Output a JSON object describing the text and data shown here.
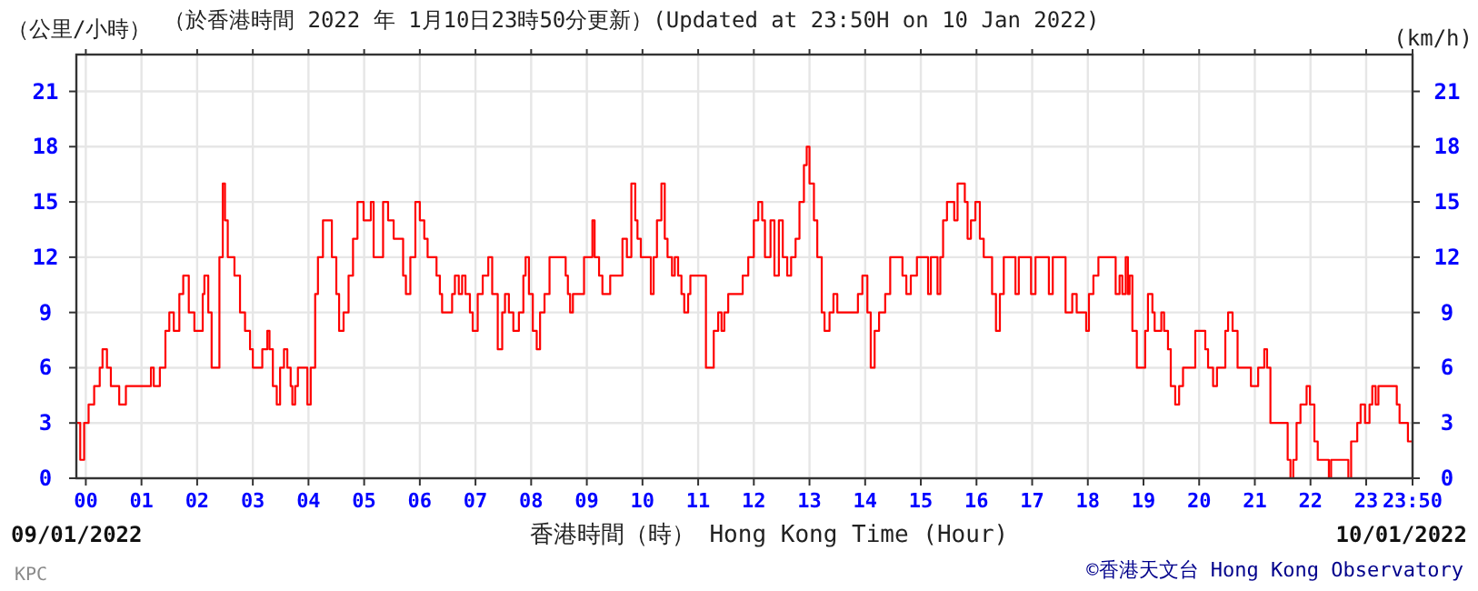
{
  "chart_data": {
    "type": "step",
    "title": "（於香港時間 2022 年 1月10日23時50分更新）(Updated at 23:50H on 10 Jan 2022)",
    "xlabel": "香港時間（時） Hong Kong Time (Hour)",
    "ylabel": "（公里/小時）",
    "y2label": "(km/h)",
    "annotations": [
      "09/01/2022",
      "10/01/2022",
      "KPC",
      "©香港天文台 Hong Kong Observatory"
    ],
    "xlim": [
      -0.17,
      23.8333
    ],
    "xticks": [
      {
        "value": 0,
        "label": "00"
      },
      {
        "value": 1,
        "label": "01"
      },
      {
        "value": 2,
        "label": "02"
      },
      {
        "value": 3,
        "label": "03"
      },
      {
        "value": 4,
        "label": "04"
      },
      {
        "value": 5,
        "label": "05"
      },
      {
        "value": 6,
        "label": "06"
      },
      {
        "value": 7,
        "label": "07"
      },
      {
        "value": 8,
        "label": "08"
      },
      {
        "value": 9,
        "label": "09"
      },
      {
        "value": 10,
        "label": "10"
      },
      {
        "value": 11,
        "label": "11"
      },
      {
        "value": 12,
        "label": "12"
      },
      {
        "value": 13,
        "label": "13"
      },
      {
        "value": 14,
        "label": "14"
      },
      {
        "value": 15,
        "label": "15"
      },
      {
        "value": 16,
        "label": "16"
      },
      {
        "value": 17,
        "label": "17"
      },
      {
        "value": 18,
        "label": "18"
      },
      {
        "value": 19,
        "label": "19"
      },
      {
        "value": 20,
        "label": "20"
      },
      {
        "value": 21,
        "label": "21"
      },
      {
        "value": 22,
        "label": "22"
      },
      {
        "value": 23,
        "label": "23"
      },
      {
        "value": 23.8333,
        "label": "23:50"
      }
    ],
    "ylim": [
      0,
      23
    ],
    "yticks": [
      0,
      3,
      6,
      9,
      12,
      15,
      18,
      21
    ],
    "y2lim": [
      0,
      23
    ],
    "y2ticks": [
      0,
      3,
      6,
      9,
      12,
      15,
      18,
      21
    ],
    "grid": true,
    "series": [
      {
        "color": "#ff0000",
        "x": [
          -0.17,
          -0.1,
          -0.03,
          0.05,
          0.15,
          0.25,
          0.3,
          0.38,
          0.45,
          0.6,
          0.72,
          1.17,
          1.22,
          1.33,
          1.43,
          1.5,
          1.58,
          1.68,
          1.75,
          1.85,
          1.95,
          2.1,
          2.13,
          2.2,
          2.26,
          2.4,
          2.46,
          2.5,
          2.55,
          2.67,
          2.77,
          2.86,
          2.95,
          3.0,
          3.17,
          3.26,
          3.3,
          3.36,
          3.43,
          3.49,
          3.56,
          3.62,
          3.68,
          3.71,
          3.76,
          3.81,
          3.98,
          4.04,
          4.12,
          4.17,
          4.26,
          4.42,
          4.5,
          4.55,
          4.63,
          4.72,
          4.8,
          4.88,
          4.99,
          5.12,
          5.17,
          5.34,
          5.43,
          5.53,
          5.7,
          5.75,
          5.83,
          5.92,
          6.0,
          6.08,
          6.14,
          6.3,
          6.36,
          6.4,
          6.58,
          6.63,
          6.7,
          6.76,
          6.82,
          6.9,
          6.95,
          7.04,
          7.13,
          7.23,
          7.3,
          7.4,
          7.48,
          7.53,
          7.6,
          7.68,
          7.78,
          7.86,
          7.9,
          7.96,
          8.03,
          8.1,
          8.16,
          8.24,
          8.33,
          8.62,
          8.66,
          8.7,
          8.75,
          8.95,
          9.1,
          9.14,
          9.22,
          9.28,
          9.42,
          9.64,
          9.72,
          9.8,
          9.87,
          9.91,
          9.97,
          10.15,
          10.2,
          10.26,
          10.34,
          10.4,
          10.45,
          10.53,
          10.58,
          10.64,
          10.7,
          10.75,
          10.82,
          10.86,
          11.14,
          11.28,
          11.36,
          11.42,
          11.47,
          11.54,
          11.8,
          11.9,
          12.0,
          12.08,
          12.15,
          12.2,
          12.3,
          12.37,
          12.45,
          12.52,
          12.6,
          12.67,
          12.75,
          12.82,
          12.9,
          12.95,
          13.0,
          13.08,
          13.14,
          13.22,
          13.27,
          13.36,
          13.43,
          13.5,
          13.87,
          13.95,
          14.04,
          14.1,
          14.17,
          14.25,
          14.36,
          14.45,
          14.67,
          14.74,
          14.82,
          14.93,
          15.13,
          15.18,
          15.3,
          15.35,
          15.4,
          15.47,
          15.6,
          15.66,
          15.79,
          15.84,
          15.9,
          15.98,
          16.06,
          16.13,
          16.28,
          16.35,
          16.42,
          16.49,
          16.7,
          16.76,
          16.98,
          17.06,
          17.3,
          17.37,
          17.6,
          17.72,
          17.8,
          17.97,
          18.02,
          18.1,
          18.19,
          18.5,
          18.57,
          18.62,
          18.68,
          18.72,
          18.75,
          18.8,
          18.88,
          19.03,
          19.08,
          19.16,
          19.2,
          19.32,
          19.37,
          19.44,
          19.49,
          19.57,
          19.64,
          19.71,
          19.93,
          20.11,
          20.16,
          20.25,
          20.32,
          20.47,
          20.52,
          20.6,
          20.69,
          20.93,
          21.06,
          21.17,
          21.22,
          21.28,
          21.59,
          21.64,
          21.69,
          21.75,
          21.82,
          21.93,
          21.99,
          22.07,
          22.13,
          22.33,
          22.37,
          22.68,
          22.73,
          22.84,
          22.9,
          22.98,
          23.06,
          23.11,
          23.17,
          23.22,
          23.55,
          23.6,
          23.75,
          23.8333
        ],
        "values": [
          3,
          1,
          3,
          4,
          5,
          6,
          7,
          6,
          5,
          4,
          5,
          6,
          5,
          6,
          8,
          9,
          8,
          10,
          11,
          9,
          8,
          10,
          11,
          9,
          6,
          12,
          16,
          14,
          12,
          11,
          9,
          8,
          7,
          6,
          7,
          8,
          7,
          5,
          4,
          6,
          7,
          6,
          5,
          4,
          5,
          6,
          4,
          6,
          10,
          12,
          14,
          12,
          10,
          8,
          9,
          11,
          13,
          15,
          14,
          15,
          12,
          15,
          14,
          13,
          11,
          10,
          12,
          15,
          14,
          13,
          12,
          11,
          10,
          9,
          10,
          11,
          10,
          11,
          10,
          9,
          8,
          10,
          11,
          12,
          10,
          7,
          9,
          10,
          9,
          8,
          9,
          11,
          12,
          10,
          8,
          7,
          9,
          10,
          12,
          11,
          10,
          9,
          10,
          12,
          14,
          12,
          11,
          10,
          11,
          13,
          12,
          16,
          14,
          13,
          12,
          10,
          12,
          14,
          16,
          13,
          12,
          11,
          12,
          11,
          10,
          9,
          10,
          11,
          6,
          8,
          9,
          8,
          9,
          10,
          11,
          12,
          14,
          15,
          14,
          12,
          14,
          11,
          14,
          12,
          11,
          12,
          13,
          15,
          17,
          18,
          16,
          14,
          12,
          9,
          8,
          9,
          10,
          9,
          10,
          11,
          9,
          6,
          8,
          9,
          10,
          12,
          11,
          10,
          11,
          12,
          10,
          12,
          10,
          12,
          14,
          15,
          14,
          16,
          15,
          13,
          14,
          15,
          13,
          12,
          10,
          8,
          10,
          12,
          10,
          12,
          10,
          12,
          10,
          12,
          9,
          10,
          9,
          8,
          10,
          11,
          12,
          10,
          11,
          10,
          12,
          10,
          11,
          8,
          6,
          8,
          10,
          9,
          8,
          9,
          8,
          7,
          5,
          4,
          5,
          6,
          8,
          7,
          6,
          5,
          6,
          8,
          9,
          8,
          6,
          5,
          6,
          7,
          6,
          3,
          1,
          0,
          1,
          3,
          4,
          5,
          4,
          2,
          1,
          0,
          1,
          0,
          2,
          3,
          4,
          3,
          4,
          5,
          4,
          5,
          4,
          3,
          2,
          2
        ]
      }
    ]
  }
}
